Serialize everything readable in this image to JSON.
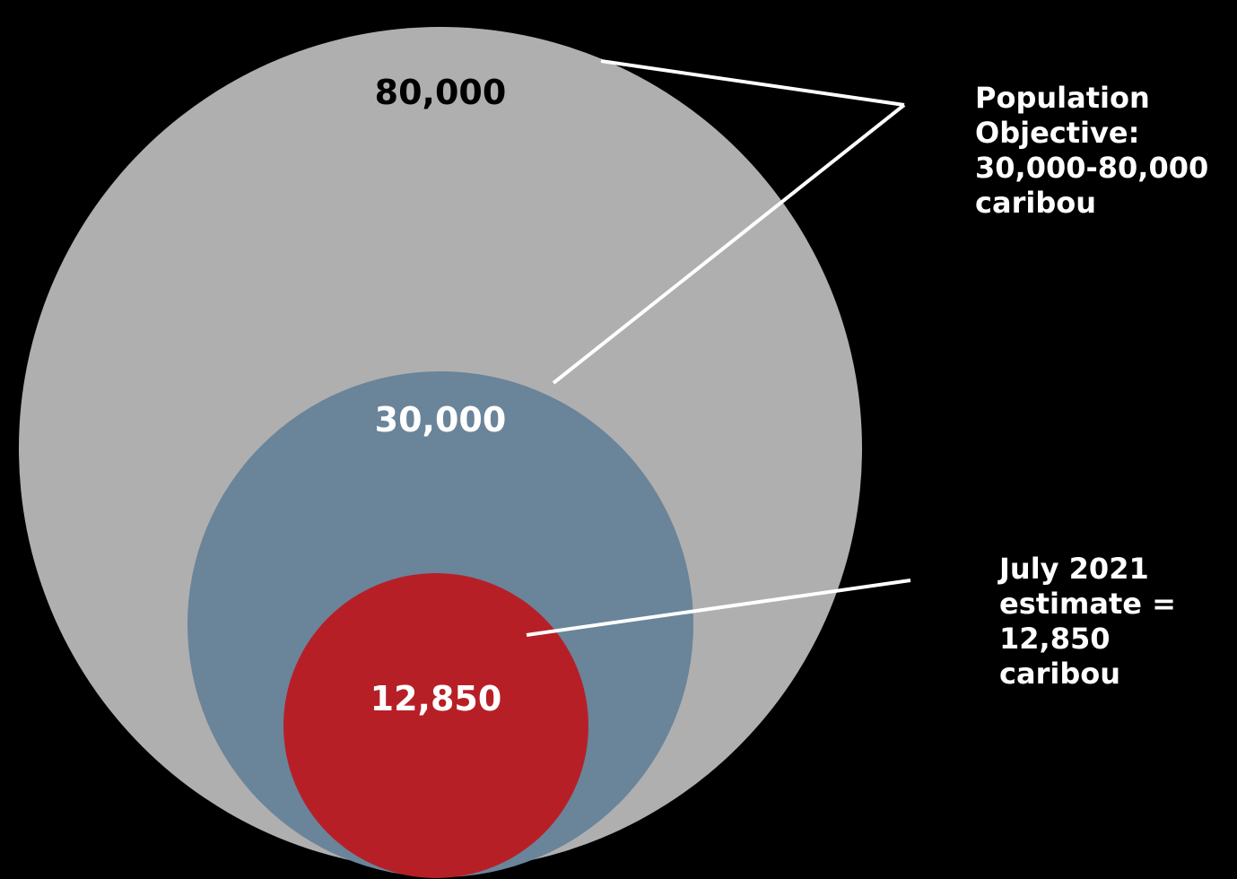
{
  "diagram": {
    "type": "nested-circles",
    "circles": [
      {
        "label": "80,000",
        "value": 80000,
        "fill": "#afafaf",
        "label_color": "#000000"
      },
      {
        "label": "30,000",
        "value": 30000,
        "fill": "#6a849a",
        "label_color": "#ffffff"
      },
      {
        "label": "12,850",
        "value": 12850,
        "fill": "#b71f27",
        "label_color": "#ffffff"
      }
    ],
    "callouts": {
      "objective": {
        "lines": [
          "Population",
          "Objective:",
          "30,000-80,000",
          "caribou"
        ]
      },
      "estimate": {
        "lines": [
          "July 2021",
          "estimate =",
          "12,850",
          "caribou"
        ]
      }
    },
    "background": "#000000",
    "leader_color": "#ffffff"
  }
}
